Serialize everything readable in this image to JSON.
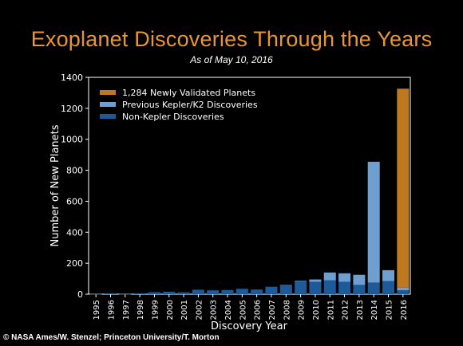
{
  "title": "Exoplanet Discoveries Through the Years",
  "subtitle": "As of May 10, 2016",
  "credit": "© NASA Ames/W. Stenzel; Princeton University/T. Morton",
  "colors": {
    "validated": "#c0781f",
    "kepler": "#6e9fd0",
    "nonkepler": "#1d5a99",
    "background": "#000000",
    "title": "#e8953a"
  },
  "chart_data": {
    "type": "bar",
    "stacked": true,
    "title": "Exoplanet Discoveries Through the Years",
    "subtitle": "As of May 10, 2016",
    "xlabel": "Discovery Year",
    "ylabel": "Number of New Planets",
    "ylim": [
      0,
      1400
    ],
    "yticks": [
      "0",
      "200",
      "400",
      "600",
      "800",
      "1000",
      "1200",
      "1400"
    ],
    "categories": [
      "1995",
      "1996",
      "1997",
      "1998",
      "1999",
      "2000",
      "2001",
      "2002",
      "2003",
      "2004",
      "2005",
      "2006",
      "2007",
      "2008",
      "2009",
      "2010",
      "2011",
      "2012",
      "2013",
      "2014",
      "2015",
      "2016"
    ],
    "series": [
      {
        "name": "Non-Kepler Discoveries",
        "color": "#1d5a99",
        "values": [
          1,
          6,
          1,
          6,
          13,
          16,
          12,
          29,
          25,
          27,
          35,
          30,
          48,
          62,
          85,
          80,
          90,
          80,
          60,
          75,
          85,
          25
        ]
      },
      {
        "name": "Previous Kepler/K2 Discoveries",
        "color": "#6e9fd0",
        "values": [
          0,
          0,
          0,
          0,
          0,
          0,
          0,
          0,
          0,
          0,
          0,
          0,
          0,
          0,
          2,
          15,
          50,
          55,
          65,
          780,
          70,
          18
        ]
      },
      {
        "name": "1,284 Newly Validated Planets",
        "color": "#c0781f",
        "values": [
          0,
          0,
          0,
          0,
          0,
          0,
          0,
          0,
          0,
          0,
          0,
          0,
          0,
          0,
          0,
          0,
          0,
          0,
          0,
          0,
          0,
          1284
        ]
      }
    ],
    "legend": {
      "placement": "top-left",
      "order": [
        "1,284 Newly Validated Planets",
        "Previous Kepler/K2 Discoveries",
        "Non-Kepler Discoveries"
      ]
    },
    "grid": false
  }
}
